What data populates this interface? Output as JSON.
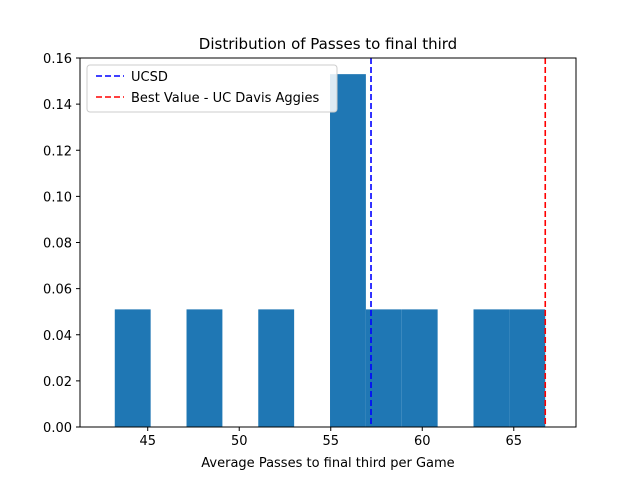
{
  "chart_data": {
    "type": "histogram",
    "title": "Distribution of Passes to final third",
    "xlabel": "Average Passes to final third per Game",
    "ylabel": "",
    "xlim": [
      41.3,
      68.4
    ],
    "ylim": [
      0,
      0.16
    ],
    "xticks": [
      45,
      50,
      55,
      60,
      65
    ],
    "yticks": [
      0.0,
      0.02,
      0.04,
      0.06,
      0.08,
      0.1,
      0.12,
      0.14,
      0.16
    ],
    "ytick_labels": [
      "0.00",
      "0.02",
      "0.04",
      "0.06",
      "0.08",
      "0.10",
      "0.12",
      "0.14",
      "0.16"
    ],
    "bin_edges": [
      43.2,
      45.16,
      47.12,
      49.08,
      51.04,
      53.0,
      54.96,
      56.92,
      58.88,
      60.84,
      62.8,
      64.76,
      66.72
    ],
    "density": [
      0.051,
      0,
      0.051,
      0,
      0.051,
      0,
      0.153,
      0.051,
      0.051,
      0,
      0.051,
      0.051
    ],
    "bar_color": "#1f77b4",
    "reference_lines": [
      {
        "label": "UCSD",
        "x": 57.2,
        "color": "#0000ff"
      },
      {
        "label": "Best Value - UC Davis Aggies",
        "x": 66.72,
        "color": "#ff0000"
      }
    ],
    "legend_position": "upper-left",
    "grid": false
  }
}
